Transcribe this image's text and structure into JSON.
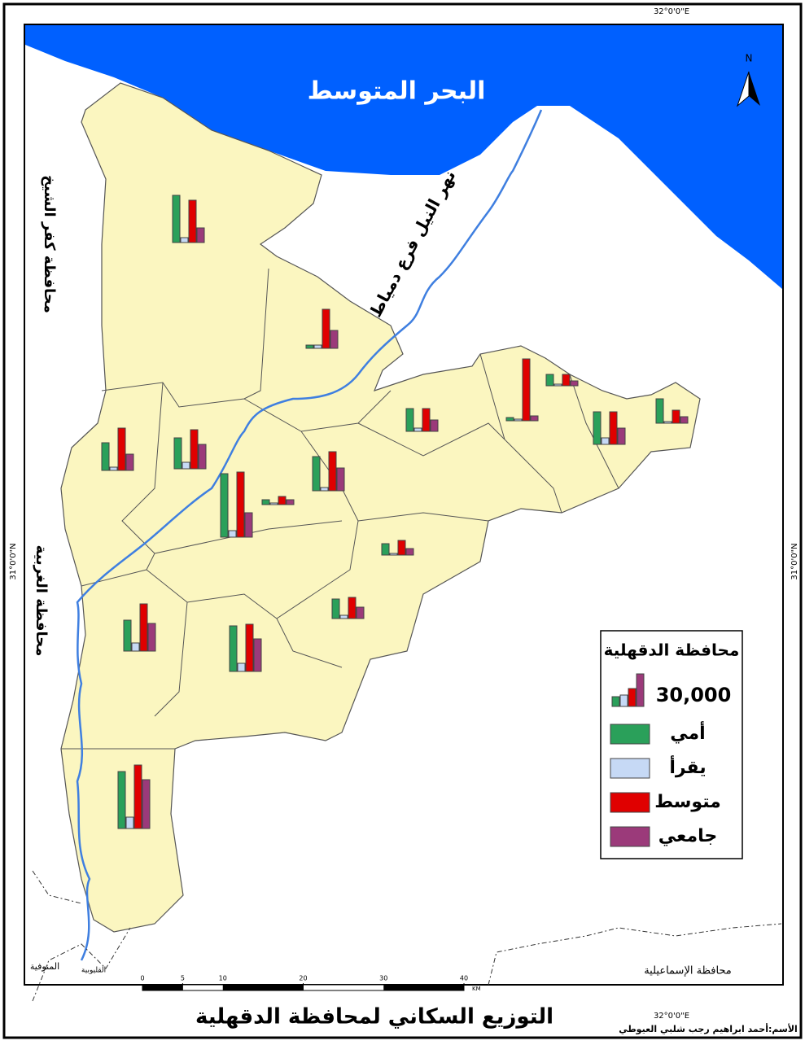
{
  "map": {
    "sea_label": "البحر المتوسط",
    "river_label": "نهر النيل فرع دمياط",
    "neighbors": [
      "محافظة كفر الشيخ",
      "محافظة الغربية",
      "المنوفية",
      "القليوبية",
      "محافظة الإسماعيلية"
    ],
    "coordinates": {
      "top": "32°0'0\"E",
      "bottom": "32°0'0\"E",
      "left": "31°0'0\"N",
      "right": "31°0'0\"N"
    },
    "north": "N"
  },
  "chart_data": {
    "type": "bar",
    "series": [
      {
        "name": "أمي",
        "color": "#2aa05a",
        "values": [
          43500,
          3000,
          25500,
          28500,
          58500,
          4500,
          31500,
          21000,
          3000,
          10500,
          30000,
          22500,
          10500,
          18000,
          28500,
          42000,
          52500
        ]
      },
      {
        "name": "يقرأ",
        "color": "#c6d9f5",
        "values": [
          4500,
          3000,
          3000,
          6000,
          6000,
          1500,
          3000,
          3000,
          1500,
          1500,
          6000,
          1500,
          1500,
          3000,
          7500,
          7500,
          10500
        ]
      },
      {
        "name": "متوسط",
        "color": "#e00000",
        "values": [
          39000,
          36000,
          39000,
          36000,
          60000,
          7500,
          36000,
          21000,
          57000,
          10500,
          30000,
          12000,
          13500,
          19500,
          43500,
          43500,
          58500
        ]
      },
      {
        "name": "جامعي",
        "color": "#9b3a7a",
        "values": [
          13500,
          16500,
          15000,
          22500,
          22500,
          4500,
          21000,
          10500,
          4500,
          4500,
          15000,
          6000,
          6000,
          10500,
          25500,
          30000,
          45000
        ]
      }
    ],
    "scale": {
      "value": 30000,
      "label": "30,000"
    }
  },
  "legend": {
    "title": "محافظة الدقهلية"
  },
  "scale_bar": {
    "ticks": [
      0,
      5,
      10,
      20,
      30,
      40
    ],
    "unit": "KM"
  },
  "title": "التوزيع السكاني لمحافظة الدقهلية",
  "author": "الأسم:أحمد ابراهيم رجب شلبي العيوطي"
}
